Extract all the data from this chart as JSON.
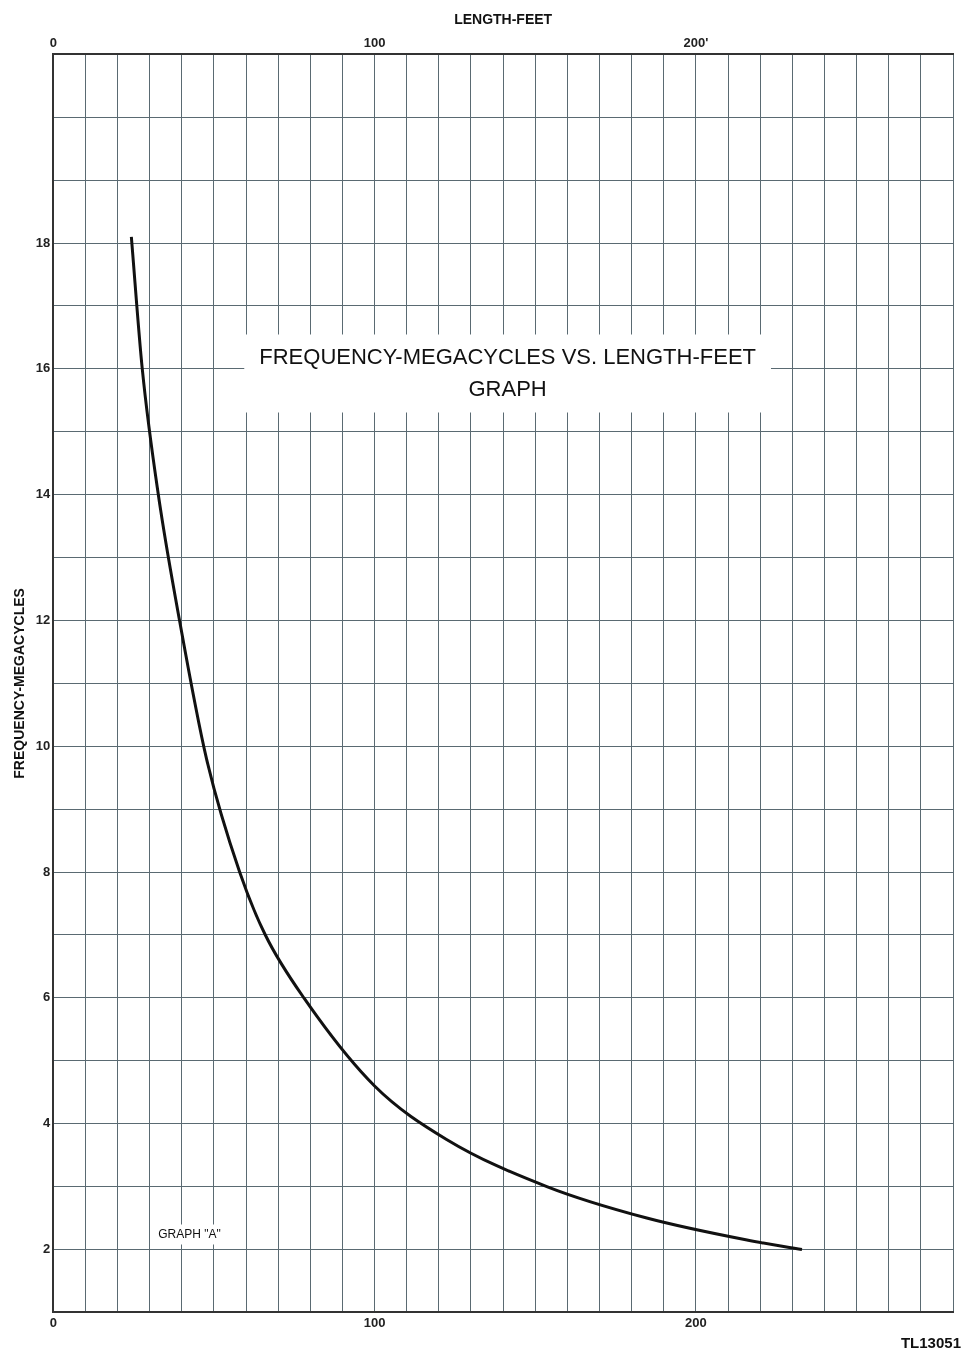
{
  "chart_data": {
    "type": "line",
    "title": "FREQUENCY-MEGACYCLES VS. LENGTH-FEET GRAPH",
    "ylabel": "FREQUENCY-MEGACYCLES",
    "x2label": "LENGTH-FEET",
    "x": [
      24.3,
      27.7,
      32.7,
      39.3,
      47.7,
      58,
      66,
      78,
      100,
      122.4,
      153.6,
      184.7,
      215.9,
      233
    ],
    "series": [
      {
        "color": "#111111",
        "values": [
          18.1,
          16,
          14,
          12,
          9.8,
          8,
          7,
          6,
          4.6,
          3.75,
          3.0,
          2.5,
          2.15,
          2.0
        ]
      }
    ],
    "xlim": [
      0,
      280
    ],
    "xticks": [
      0,
      {
        "value": 10,
        "label": null
      },
      {
        "value": 20,
        "label": null
      },
      {
        "value": 30,
        "label": null
      },
      {
        "value": 40,
        "label": null
      },
      {
        "value": 50,
        "label": null
      },
      {
        "value": 60,
        "label": null
      },
      {
        "value": 70,
        "label": null
      },
      {
        "value": 80,
        "label": null
      },
      {
        "value": 90,
        "label": null
      },
      100,
      {
        "value": 110,
        "label": null
      },
      {
        "value": 120,
        "label": null
      },
      {
        "value": 130,
        "label": null
      },
      {
        "value": 140,
        "label": null
      },
      {
        "value": 150,
        "label": null
      },
      {
        "value": 160,
        "label": null
      },
      {
        "value": 170,
        "label": null
      },
      {
        "value": 180,
        "label": null
      },
      {
        "value": 190,
        "label": null
      },
      200,
      {
        "value": 210,
        "label": null
      },
      {
        "value": 220,
        "label": null
      },
      {
        "value": 230,
        "label": null
      },
      {
        "value": 240,
        "label": null
      },
      {
        "value": 250,
        "label": null
      },
      {
        "value": 260,
        "label": null
      },
      {
        "value": 270,
        "label": null
      },
      {
        "value": 280,
        "label": null
      }
    ],
    "x2lim": [
      0,
      280
    ],
    "x2ticks": [
      0,
      100,
      {
        "value": 200,
        "label": "200'"
      }
    ],
    "ylim": [
      1,
      21
    ],
    "yticks": [
      {
        "value": 1,
        "label": null
      },
      2,
      {
        "value": 3,
        "label": null
      },
      4,
      {
        "value": 5,
        "label": null
      },
      6,
      {
        "value": 7,
        "label": null
      },
      8,
      {
        "value": 9,
        "label": null
      },
      10,
      {
        "value": 11,
        "label": null
      },
      12,
      {
        "value": 13,
        "label": null
      },
      14,
      {
        "value": 15,
        "label": null
      },
      16,
      {
        "value": 17,
        "label": null
      },
      18,
      {
        "value": 19,
        "label": null
      },
      {
        "value": 20,
        "label": null
      },
      {
        "value": 21,
        "label": null
      }
    ],
    "grid": true,
    "marker": "none",
    "line_style": "solid",
    "legend": false,
    "annotations": [
      "GRAPH \"A\"",
      "TL13051"
    ]
  }
}
